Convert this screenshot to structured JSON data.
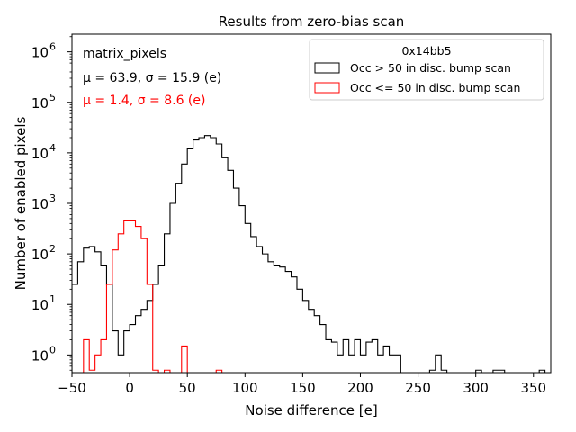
{
  "chart_data": {
    "type": "histogram-step",
    "title": "Results from zero-bias scan",
    "xlabel": "Noise difference [e]",
    "ylabel": "Number of enabled pixels",
    "xlim": [
      -50,
      365
    ],
    "ylim_log10": [
      -0.35,
      6.35
    ],
    "yscale": "log",
    "x_ticks": [
      -50,
      0,
      50,
      100,
      150,
      200,
      250,
      300,
      350
    ],
    "x_tick_labels": [
      "−50",
      "0",
      "50",
      "100",
      "150",
      "200",
      "250",
      "300",
      "350"
    ],
    "y_ticks_exp": [
      0,
      1,
      2,
      3,
      4,
      5,
      6
    ],
    "y_tick_base": "10",
    "annotations": {
      "label": "matrix_pixels",
      "stats_black": "μ = 63.9, σ = 15.9 (e)",
      "stats_red": "μ = 1.4, σ = 8.6 (e)"
    },
    "legend": {
      "title": "0x14bb5",
      "position": "top-right",
      "entries": [
        {
          "label": "Occ > 50 in disc. bump scan",
          "color": "#000000"
        },
        {
          "label": "Occ <= 50 in disc. bump scan",
          "color": "#ff0000"
        }
      ]
    },
    "series": [
      {
        "name": "Occ > 50 in disc. bump scan",
        "color": "#000000",
        "bin_width": 5,
        "bins": [
          [
            -50,
            25
          ],
          [
            -45,
            70
          ],
          [
            -40,
            130
          ],
          [
            -35,
            140
          ],
          [
            -30,
            110
          ],
          [
            -25,
            60
          ],
          [
            -20,
            25
          ],
          [
            -15,
            3
          ],
          [
            -10,
            1
          ],
          [
            -5,
            3
          ],
          [
            0,
            4
          ],
          [
            5,
            6
          ],
          [
            10,
            8
          ],
          [
            15,
            12
          ],
          [
            20,
            25
          ],
          [
            25,
            60
          ],
          [
            30,
            250
          ],
          [
            35,
            1000
          ],
          [
            40,
            2500
          ],
          [
            45,
            6000
          ],
          [
            50,
            12000
          ],
          [
            55,
            18000
          ],
          [
            60,
            20000
          ],
          [
            65,
            22000
          ],
          [
            70,
            20000
          ],
          [
            75,
            15000
          ],
          [
            80,
            8000
          ],
          [
            85,
            4500
          ],
          [
            90,
            2000
          ],
          [
            95,
            900
          ],
          [
            100,
            400
          ],
          [
            105,
            220
          ],
          [
            110,
            140
          ],
          [
            115,
            100
          ],
          [
            120,
            70
          ],
          [
            125,
            60
          ],
          [
            130,
            55
          ],
          [
            135,
            45
          ],
          [
            140,
            35
          ],
          [
            145,
            20
          ],
          [
            150,
            12
          ],
          [
            155,
            8
          ],
          [
            160,
            6
          ],
          [
            165,
            4
          ],
          [
            170,
            2
          ],
          [
            175,
            1.8
          ],
          [
            180,
            1
          ],
          [
            185,
            2
          ],
          [
            190,
            1
          ],
          [
            195,
            2
          ],
          [
            200,
            1
          ],
          [
            205,
            1.8
          ],
          [
            210,
            2
          ],
          [
            215,
            1
          ],
          [
            220,
            1.5
          ],
          [
            225,
            1
          ],
          [
            230,
            1
          ],
          [
            235,
            0.4
          ],
          [
            240,
            0.4
          ],
          [
            245,
            0.4
          ],
          [
            250,
            0.4
          ],
          [
            255,
            0.4
          ],
          [
            260,
            0.5
          ],
          [
            265,
            1
          ],
          [
            270,
            0.5
          ],
          [
            275,
            0.4
          ],
          [
            280,
            0.4
          ],
          [
            285,
            0.4
          ],
          [
            290,
            0.4
          ],
          [
            295,
            0.4
          ],
          [
            300,
            0.5
          ],
          [
            305,
            0.4
          ],
          [
            310,
            0.4
          ],
          [
            315,
            0.5
          ],
          [
            320,
            0.5
          ],
          [
            325,
            0.4
          ],
          [
            330,
            0.4
          ],
          [
            335,
            0.4
          ],
          [
            340,
            0.4
          ],
          [
            345,
            0.4
          ],
          [
            350,
            0.4
          ],
          [
            355,
            0.5
          ]
        ]
      },
      {
        "name": "Occ <= 50 in disc. bump scan",
        "color": "#ff0000",
        "bin_width": 5,
        "bins": [
          [
            -45,
            0.4
          ],
          [
            -40,
            2
          ],
          [
            -35,
            0.5
          ],
          [
            -30,
            1
          ],
          [
            -25,
            2
          ],
          [
            -20,
            25
          ],
          [
            -15,
            120
          ],
          [
            -10,
            250
          ],
          [
            -5,
            450
          ],
          [
            0,
            450
          ],
          [
            5,
            350
          ],
          [
            10,
            200
          ],
          [
            15,
            25
          ],
          [
            20,
            0.5
          ],
          [
            25,
            0.4
          ],
          [
            30,
            0.5
          ],
          [
            35,
            0.4
          ],
          [
            40,
            0.4
          ],
          [
            45,
            1.5
          ],
          [
            50,
            0.4
          ],
          [
            55,
            0.4
          ],
          [
            60,
            0.4
          ],
          [
            65,
            0.4
          ],
          [
            70,
            0.4
          ],
          [
            75,
            0.5
          ],
          [
            80,
            0.4
          ]
        ]
      }
    ]
  }
}
